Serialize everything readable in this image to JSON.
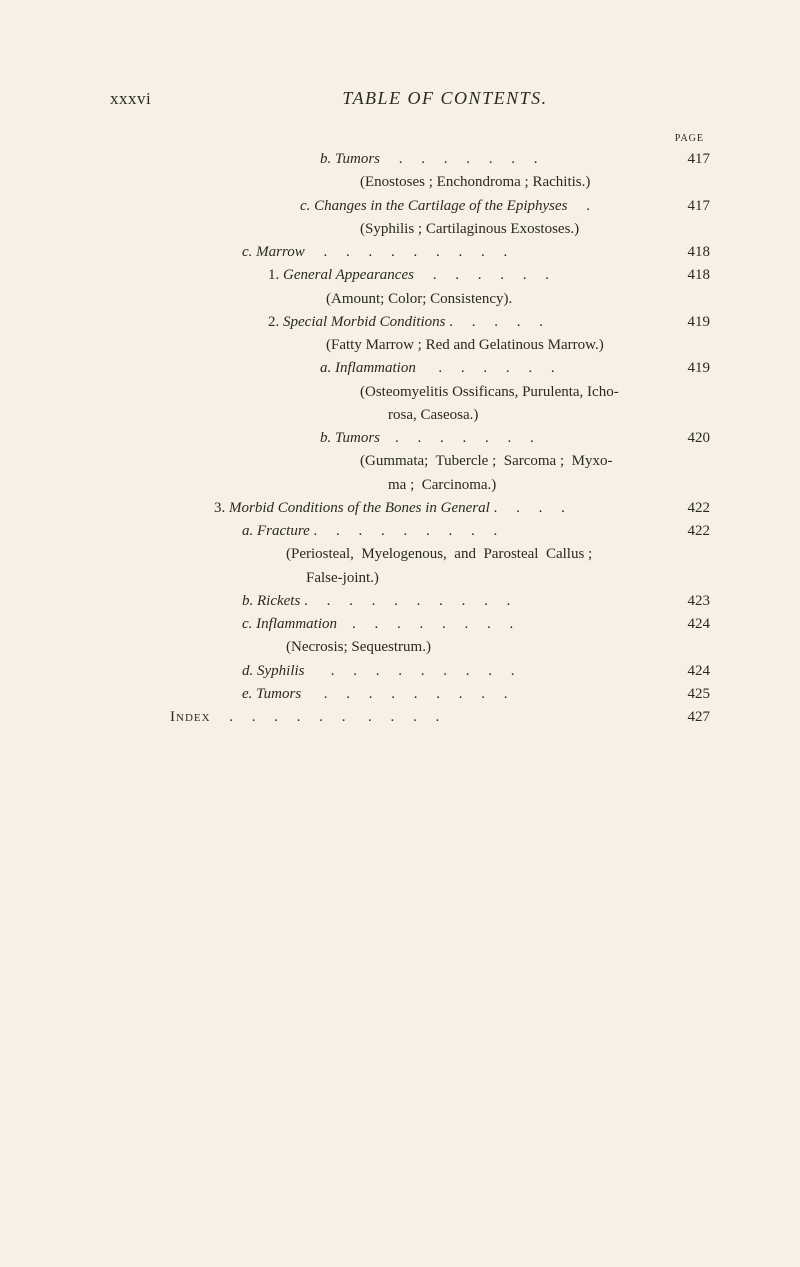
{
  "header": {
    "page_roman": "xxxvi",
    "title": "TABLE OF CONTENTS."
  },
  "page_column_label": "PAGE",
  "entries": [
    {
      "indent": 210,
      "label": "b.",
      "text_ital": " Tumors",
      "text_plain": "",
      "leaders": "     .     .     .     .     .     .     .",
      "page": "417"
    },
    {
      "indent": 250,
      "paren": "(Enostoses ; Enchondroma ; Rachitis.)"
    },
    {
      "indent": 190,
      "label": "c.",
      "text_ital": " Changes in the Cartilage of the Epiphyses",
      "leaders": "     .",
      "page": "417"
    },
    {
      "indent": 250,
      "paren": "(Syphilis ; Cartilaginous Exostoses.)"
    },
    {
      "indent": 132,
      "label": "c.",
      "text_ital": " Marrow",
      "leaders": "     .     .     .     .     .     .     .     .     .",
      "page": "418"
    },
    {
      "indent": 158,
      "label": "1.",
      "text_ital": " General Appearances",
      "leaders": "     .     .     .     .     .     .",
      "page": "418"
    },
    {
      "indent": 216,
      "paren": "(Amount; Color; Consistency)."
    },
    {
      "indent": 158,
      "label": "2.",
      "text_ital": " Special Morbid Conditions",
      "leaders": " .     .     .     .     .",
      "page": "419"
    },
    {
      "indent": 216,
      "paren": "(Fatty Marrow ; Red and Gelatinous Marrow.)"
    },
    {
      "indent": 210,
      "label": "a.",
      "text_ital": " Inflammation",
      "leaders": "      .     .     .     .     .     .",
      "page": "419"
    },
    {
      "indent": 250,
      "paren": "(Osteomyelitis Ossificans, Purulenta, Icho-"
    },
    {
      "indent": 278,
      "paren": "rosa, Caseosa.)"
    },
    {
      "indent": 210,
      "label": "b.",
      "text_ital": " Tumors",
      "leaders": "    .     .     .     .     .     .     .",
      "page": "420"
    },
    {
      "indent": 250,
      "paren": "(Gummata;  Tubercle ;  Sarcoma ;  Myxo-"
    },
    {
      "indent": 278,
      "paren": "ma ;  Carcinoma.)"
    },
    {
      "indent": 104,
      "label": "3.",
      "text_ital": " Morbid Conditions of the Bones in General",
      "leaders": " .     .     .     .",
      "page": "422"
    },
    {
      "indent": 132,
      "label": "a.",
      "text_ital": " Fracture",
      "leaders": " .     .     .     .     .     .     .     .     .",
      "page": "422"
    },
    {
      "indent": 176,
      "paren": "(Periosteal,  Myelogenous,  and  Parosteal  Callus ;"
    },
    {
      "indent": 196,
      "paren": "False-joint.)"
    },
    {
      "indent": 132,
      "label": "b.",
      "text_ital": " Rickets",
      "leaders": " .     .     .     .     .     .     .     .     .     .",
      "page": "423"
    },
    {
      "indent": 132,
      "label": "c.",
      "text_ital": " Inflammation",
      "leaders": "    .     .     .     .     .     .     .     .",
      "page": "424"
    },
    {
      "indent": 176,
      "paren": "(Necrosis; Sequestrum.)"
    },
    {
      "indent": 132,
      "label": "d.",
      "text_ital": " Syphilis",
      "leaders": "       .     .     .     .     .     .     .     .     .",
      "page": "424"
    },
    {
      "indent": 132,
      "label": "e.",
      "text_ital": " Tumors",
      "leaders": "      .     .     .     .     .     .     .     .     .",
      "page": "425"
    },
    {
      "indent": 60,
      "smallcaps": "Index",
      "leaders": "     .     .     .     .     .     .      .     .     .     .",
      "page": "427"
    }
  ]
}
